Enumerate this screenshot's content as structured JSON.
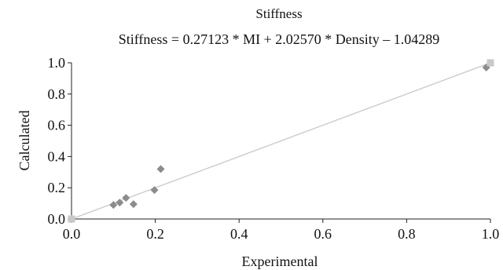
{
  "chart_data": {
    "type": "scatter",
    "title": "Stiffness",
    "subtitle": "Stiffness = 0.27123 * MI + 2.02570 * Density – 1.04289",
    "xlabel": "Experimental",
    "ylabel": "Calculated",
    "xlim": [
      0,
      1.0
    ],
    "ylim": [
      0,
      1.0
    ],
    "x_ticks": [
      "0.0",
      "0.2",
      "0.4",
      "0.6",
      "0.8",
      "1.0"
    ],
    "y_ticks": [
      "0.0",
      "0.2",
      "0.4",
      "0.6",
      "0.8",
      "1.0"
    ],
    "grid": false,
    "legend": "none",
    "series": [
      {
        "marker": "diamond",
        "color": "#8c8c8c",
        "points": [
          {
            "x": 0.0,
            "y": 0.0
          },
          {
            "x": 0.1,
            "y": 0.09
          },
          {
            "x": 0.115,
            "y": 0.105
          },
          {
            "x": 0.13,
            "y": 0.135
          },
          {
            "x": 0.148,
            "y": 0.095
          },
          {
            "x": 0.198,
            "y": 0.185
          },
          {
            "x": 0.213,
            "y": 0.32
          },
          {
            "x": 0.99,
            "y": 0.97
          }
        ]
      },
      {
        "marker": "square",
        "color": "#c8c8c8",
        "points": [
          {
            "x": 0.0,
            "y": 0.0
          },
          {
            "x": 1.0,
            "y": 1.0
          }
        ]
      }
    ],
    "reference_line": {
      "from": [
        0,
        0
      ],
      "to": [
        1.0,
        1.0
      ],
      "color": "#c8c8c8"
    }
  }
}
